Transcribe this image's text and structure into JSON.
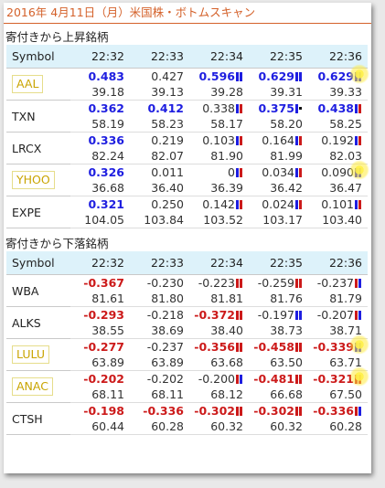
{
  "title": "2016年 4月11日（月）米国株・ボトムスキャン",
  "sections": [
    {
      "heading": "寄付きから上昇銘柄",
      "header": [
        "Symbol",
        "22:32",
        "22:33",
        "22:34",
        "22:35",
        "22:36"
      ],
      "rows": [
        {
          "symbol": "AAL",
          "highlight": true,
          "chg": [
            {
              "v": "0.483",
              "bold": true,
              "bar": "none"
            },
            {
              "v": "0.427",
              "bold": false,
              "bar": "none"
            },
            {
              "v": "0.596",
              "bold": true,
              "bar": "bb"
            },
            {
              "v": "0.629",
              "bold": true,
              "bar": "bb"
            },
            {
              "v": "0.629",
              "bold": true,
              "bar": "bb"
            }
          ],
          "price": [
            "39.18",
            "39.13",
            "39.28",
            "39.31",
            "39.33"
          ],
          "burst_col": 4
        },
        {
          "symbol": "TXN",
          "highlight": false,
          "chg": [
            {
              "v": "0.362",
              "bold": true,
              "bar": "none"
            },
            {
              "v": "0.412",
              "bold": true,
              "bar": "none"
            },
            {
              "v": "0.338",
              "bold": false,
              "bar": "br"
            },
            {
              "v": "0.375",
              "bold": true,
              "bar": "bk"
            },
            {
              "v": "0.438",
              "bold": true,
              "bar": "br"
            }
          ],
          "price": [
            "58.19",
            "58.23",
            "58.17",
            "58.20",
            "58.25"
          ],
          "burst_col": -1
        },
        {
          "symbol": "LRCX",
          "highlight": false,
          "chg": [
            {
              "v": "0.336",
              "bold": true,
              "bar": "none"
            },
            {
              "v": "0.219",
              "bold": false,
              "bar": "none"
            },
            {
              "v": "0.103",
              "bold": false,
              "bar": "br"
            },
            {
              "v": "0.164",
              "bold": false,
              "bar": "br"
            },
            {
              "v": "0.192",
              "bold": false,
              "bar": "br"
            }
          ],
          "price": [
            "82.24",
            "82.07",
            "81.90",
            "81.99",
            "82.03"
          ],
          "burst_col": -1
        },
        {
          "symbol": "YHOO",
          "highlight": true,
          "chg": [
            {
              "v": "0.326",
              "bold": true,
              "bar": "none"
            },
            {
              "v": "0.011",
              "bold": false,
              "bar": "none"
            },
            {
              "v": "0",
              "bold": false,
              "bar": "br"
            },
            {
              "v": "0.034",
              "bold": false,
              "bar": "br"
            },
            {
              "v": "0.090",
              "bold": false,
              "bar": "bb"
            }
          ],
          "price": [
            "36.68",
            "36.40",
            "36.39",
            "36.42",
            "36.47"
          ],
          "burst_col": 4
        },
        {
          "symbol": "EXPE",
          "highlight": false,
          "chg": [
            {
              "v": "0.321",
              "bold": true,
              "bar": "none"
            },
            {
              "v": "0.250",
              "bold": false,
              "bar": "none"
            },
            {
              "v": "0.142",
              "bold": false,
              "bar": "br"
            },
            {
              "v": "0.024",
              "bold": false,
              "bar": "br"
            },
            {
              "v": "0.101",
              "bold": false,
              "bar": "br"
            }
          ],
          "price": [
            "104.05",
            "103.84",
            "103.52",
            "103.17",
            "103.40"
          ],
          "burst_col": -1
        }
      ]
    },
    {
      "heading": "寄付きから下落銘柄",
      "header": [
        "Symbol",
        "22:32",
        "22:33",
        "22:34",
        "22:35",
        "22:36"
      ],
      "rows": [
        {
          "symbol": "WBA",
          "highlight": false,
          "chg": [
            {
              "v": "-0.367",
              "bold": true,
              "bar": "none"
            },
            {
              "v": "-0.230",
              "bold": false,
              "bar": "none"
            },
            {
              "v": "-0.223",
              "bold": false,
              "bar": "rr"
            },
            {
              "v": "-0.259",
              "bold": false,
              "bar": "rr"
            },
            {
              "v": "-0.237",
              "bold": false,
              "bar": "rb"
            }
          ],
          "price": [
            "81.61",
            "81.80",
            "81.81",
            "81.76",
            "81.79"
          ],
          "burst_col": -1
        },
        {
          "symbol": "ALKS",
          "highlight": false,
          "chg": [
            {
              "v": "-0.293",
              "bold": true,
              "bar": "none"
            },
            {
              "v": "-0.218",
              "bold": false,
              "bar": "none"
            },
            {
              "v": "-0.372",
              "bold": true,
              "bar": "rr"
            },
            {
              "v": "-0.197",
              "bold": false,
              "bar": "bb"
            },
            {
              "v": "-0.207",
              "bold": false,
              "bar": "rb"
            }
          ],
          "price": [
            "38.55",
            "38.69",
            "38.40",
            "38.73",
            "38.71"
          ],
          "burst_col": -1
        },
        {
          "symbol": "LULU",
          "highlight": true,
          "chg": [
            {
              "v": "-0.277",
              "bold": true,
              "bar": "none"
            },
            {
              "v": "-0.237",
              "bold": false,
              "bar": "none"
            },
            {
              "v": "-0.356",
              "bold": true,
              "bar": "rr"
            },
            {
              "v": "-0.458",
              "bold": true,
              "bar": "rr"
            },
            {
              "v": "-0.339",
              "bold": true,
              "bar": "bb"
            }
          ],
          "price": [
            "63.89",
            "63.89",
            "63.68",
            "63.50",
            "63.71"
          ],
          "burst_col": 4
        },
        {
          "symbol": "ANAC",
          "highlight": true,
          "chg": [
            {
              "v": "-0.202",
              "bold": true,
              "bar": "none"
            },
            {
              "v": "-0.202",
              "bold": false,
              "bar": "none"
            },
            {
              "v": "-0.200",
              "bold": false,
              "bar": "rb"
            },
            {
              "v": "-0.481",
              "bold": true,
              "bar": "rr"
            },
            {
              "v": "-0.321",
              "bold": true,
              "bar": "rr"
            }
          ],
          "price": [
            "68.11",
            "68.11",
            "68.12",
            "66.68",
            "67.50"
          ],
          "burst_col": 4
        },
        {
          "symbol": "CTSH",
          "highlight": false,
          "chg": [
            {
              "v": "-0.198",
              "bold": true,
              "bar": "none"
            },
            {
              "v": "-0.336",
              "bold": true,
              "bar": "none"
            },
            {
              "v": "-0.302",
              "bold": true,
              "bar": "rr"
            },
            {
              "v": "-0.302",
              "bold": true,
              "bar": "rr"
            },
            {
              "v": "-0.336",
              "bold": true,
              "bar": "rb"
            }
          ],
          "price": [
            "60.44",
            "60.28",
            "60.32",
            "60.32",
            "60.28"
          ],
          "burst_col": -1
        }
      ]
    }
  ],
  "colors": {
    "up": "#1e1ee0",
    "down": "#cc1a1a",
    "title": "#d4612a",
    "header_bg": "#ddf2fa",
    "bar_blue": "#1e1ee0",
    "bar_red": "#cc1a1a",
    "burst": "#ffec3c"
  }
}
